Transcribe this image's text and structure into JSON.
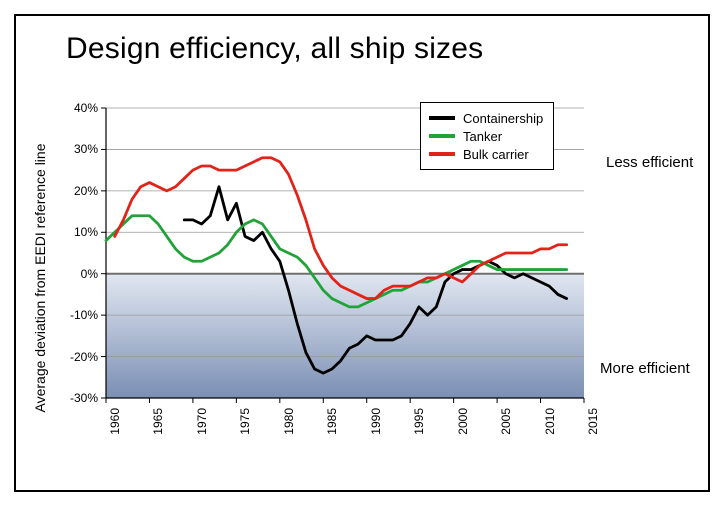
{
  "title": "Design efficiency, all ship sizes",
  "chart": {
    "type": "line",
    "ylabel": "Average deviation from EEDI reference line",
    "xlim": [
      1960,
      2015
    ],
    "ylim": [
      -30,
      40
    ],
    "xtick_step": 5,
    "xticks": [
      1960,
      1965,
      1970,
      1975,
      1980,
      1985,
      1990,
      1995,
      2000,
      2005,
      2010,
      2015
    ],
    "yticks": [
      -30,
      -20,
      -10,
      0,
      10,
      20,
      30,
      40
    ],
    "ytick_labels": [
      "-30%",
      "-20%",
      "-10%",
      "0%",
      "10%",
      "20%",
      "30%",
      "40%"
    ],
    "tick_fontsize": 12,
    "title_fontsize": 30,
    "label_fontsize": 14,
    "background_color": "#ffffff",
    "grid_color": "#9a9a9a",
    "axis_color": "#000000",
    "axis_width": 1.2,
    "zero_line_color": "#6f6f6f",
    "zero_line_width": 2,
    "neg_gradient_top": "#e1e7f1",
    "neg_gradient_bottom": "#7b8fb4",
    "line_width": 2.8,
    "legend_border": "#000000",
    "legend_bg": "#ffffff",
    "legend_position": "top-right-inset",
    "series": [
      {
        "name": "Containership",
        "color": "#000000",
        "data": [
          [
            1969,
            13
          ],
          [
            1970,
            13
          ],
          [
            1971,
            12
          ],
          [
            1972,
            14
          ],
          [
            1973,
            21
          ],
          [
            1974,
            13
          ],
          [
            1975,
            17
          ],
          [
            1976,
            9
          ],
          [
            1977,
            8
          ],
          [
            1978,
            10
          ],
          [
            1979,
            6
          ],
          [
            1980,
            3
          ],
          [
            1981,
            -4
          ],
          [
            1982,
            -12
          ],
          [
            1983,
            -19
          ],
          [
            1984,
            -23
          ],
          [
            1985,
            -24
          ],
          [
            1986,
            -23
          ],
          [
            1987,
            -21
          ],
          [
            1988,
            -18
          ],
          [
            1989,
            -17
          ],
          [
            1990,
            -15
          ],
          [
            1991,
            -16
          ],
          [
            1992,
            -16
          ],
          [
            1993,
            -16
          ],
          [
            1994,
            -15
          ],
          [
            1995,
            -12
          ],
          [
            1996,
            -8
          ],
          [
            1997,
            -10
          ],
          [
            1998,
            -8
          ],
          [
            1999,
            -2
          ],
          [
            2000,
            0
          ],
          [
            2001,
            1
          ],
          [
            2002,
            1
          ],
          [
            2003,
            2
          ],
          [
            2004,
            3
          ],
          [
            2005,
            2
          ],
          [
            2006,
            0
          ],
          [
            2007,
            -1
          ],
          [
            2008,
            0
          ],
          [
            2009,
            -1
          ],
          [
            2010,
            -2
          ],
          [
            2011,
            -3
          ],
          [
            2012,
            -5
          ],
          [
            2013,
            -6
          ]
        ]
      },
      {
        "name": "Tanker",
        "color": "#22a33a",
        "data": [
          [
            1960,
            8
          ],
          [
            1961,
            10
          ],
          [
            1962,
            12
          ],
          [
            1963,
            14
          ],
          [
            1964,
            14
          ],
          [
            1965,
            14
          ],
          [
            1966,
            12
          ],
          [
            1967,
            9
          ],
          [
            1968,
            6
          ],
          [
            1969,
            4
          ],
          [
            1970,
            3
          ],
          [
            1971,
            3
          ],
          [
            1972,
            4
          ],
          [
            1973,
            5
          ],
          [
            1974,
            7
          ],
          [
            1975,
            10
          ],
          [
            1976,
            12
          ],
          [
            1977,
            13
          ],
          [
            1978,
            12
          ],
          [
            1979,
            9
          ],
          [
            1980,
            6
          ],
          [
            1981,
            5
          ],
          [
            1982,
            4
          ],
          [
            1983,
            2
          ],
          [
            1984,
            -1
          ],
          [
            1985,
            -4
          ],
          [
            1986,
            -6
          ],
          [
            1987,
            -7
          ],
          [
            1988,
            -8
          ],
          [
            1989,
            -8
          ],
          [
            1990,
            -7
          ],
          [
            1991,
            -6
          ],
          [
            1992,
            -5
          ],
          [
            1993,
            -4
          ],
          [
            1994,
            -4
          ],
          [
            1995,
            -3
          ],
          [
            1996,
            -2
          ],
          [
            1997,
            -2
          ],
          [
            1998,
            -1
          ],
          [
            1999,
            0
          ],
          [
            2000,
            1
          ],
          [
            2001,
            2
          ],
          [
            2002,
            3
          ],
          [
            2003,
            3
          ],
          [
            2004,
            2
          ],
          [
            2005,
            1
          ],
          [
            2006,
            1
          ],
          [
            2007,
            1
          ],
          [
            2008,
            1
          ],
          [
            2009,
            1
          ],
          [
            2010,
            1
          ],
          [
            2011,
            1
          ],
          [
            2012,
            1
          ],
          [
            2013,
            1
          ]
        ]
      },
      {
        "name": "Bulk carrier",
        "color": "#e2231a",
        "data": [
          [
            1961,
            9
          ],
          [
            1962,
            13
          ],
          [
            1963,
            18
          ],
          [
            1964,
            21
          ],
          [
            1965,
            22
          ],
          [
            1966,
            21
          ],
          [
            1967,
            20
          ],
          [
            1968,
            21
          ],
          [
            1969,
            23
          ],
          [
            1970,
            25
          ],
          [
            1971,
            26
          ],
          [
            1972,
            26
          ],
          [
            1973,
            25
          ],
          [
            1974,
            25
          ],
          [
            1975,
            25
          ],
          [
            1976,
            26
          ],
          [
            1977,
            27
          ],
          [
            1978,
            28
          ],
          [
            1979,
            28
          ],
          [
            1980,
            27
          ],
          [
            1981,
            24
          ],
          [
            1982,
            19
          ],
          [
            1983,
            13
          ],
          [
            1984,
            6
          ],
          [
            1985,
            2
          ],
          [
            1986,
            -1
          ],
          [
            1987,
            -3
          ],
          [
            1988,
            -4
          ],
          [
            1989,
            -5
          ],
          [
            1990,
            -6
          ],
          [
            1991,
            -6
          ],
          [
            1992,
            -4
          ],
          [
            1993,
            -3
          ],
          [
            1994,
            -3
          ],
          [
            1995,
            -3
          ],
          [
            1996,
            -2
          ],
          [
            1997,
            -1
          ],
          [
            1998,
            -1
          ],
          [
            1999,
            0
          ],
          [
            2000,
            -1
          ],
          [
            2001,
            -2
          ],
          [
            2002,
            0
          ],
          [
            2003,
            2
          ],
          [
            2004,
            3
          ],
          [
            2005,
            4
          ],
          [
            2006,
            5
          ],
          [
            2007,
            5
          ],
          [
            2008,
            5
          ],
          [
            2009,
            5
          ],
          [
            2010,
            6
          ],
          [
            2011,
            6
          ],
          [
            2012,
            7
          ],
          [
            2013,
            7
          ]
        ]
      }
    ],
    "annotations": [
      {
        "text": "Less efficient",
        "pos": "upper-right-outside"
      },
      {
        "text": "More efficient",
        "pos": "lower-right-outside"
      }
    ]
  },
  "legend": {
    "items": [
      {
        "label": "Containership",
        "color": "#000000"
      },
      {
        "label": "Tanker",
        "color": "#22a33a"
      },
      {
        "label": "Bulk carrier",
        "color": "#e2231a"
      }
    ]
  }
}
